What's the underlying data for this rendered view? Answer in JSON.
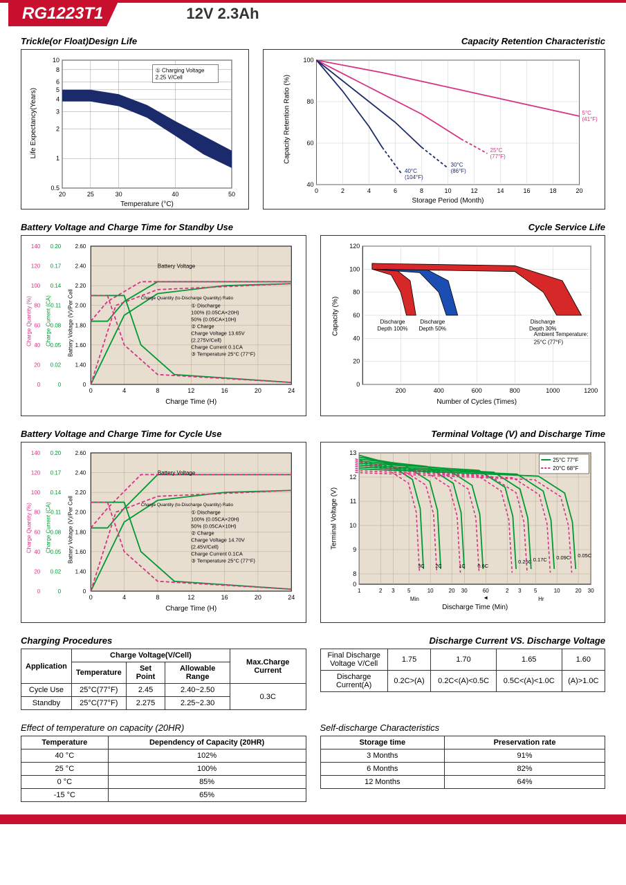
{
  "header": {
    "model": "RG1223T1",
    "spec": "12V  2.3Ah"
  },
  "colors": {
    "accent_red": "#c8102e",
    "navy": "#1b2a6b",
    "magenta": "#d63384",
    "green": "#009933",
    "blue_line": "#1b2a6b",
    "grid": "#d9c9b5",
    "grid_grey": "#cccccc",
    "bg_tan": "#e8ded0",
    "text": "#000000",
    "red_fill": "#d62828",
    "blue_fill": "#1b4db3"
  },
  "chart1": {
    "title": "Trickle(or Float)Design Life",
    "xlabel": "Temperature (°C)",
    "ylabel": "Life Expectancy(Years)",
    "legend": "① Charging Voltage\n2.25 V/Cell",
    "xticks": [
      "20",
      "25",
      "30",
      "40",
      "50"
    ],
    "yticks": [
      "0.5",
      "1",
      "2",
      "3",
      "4",
      "5",
      "6",
      "8",
      "10"
    ],
    "band_upper": [
      [
        20,
        5
      ],
      [
        25,
        5
      ],
      [
        30,
        4.5
      ],
      [
        35,
        3.5
      ],
      [
        40,
        2.4
      ],
      [
        45,
        1.7
      ],
      [
        50,
        1.2
      ]
    ],
    "band_lower": [
      [
        20,
        3.8
      ],
      [
        25,
        3.8
      ],
      [
        30,
        3.4
      ],
      [
        35,
        2.6
      ],
      [
        40,
        1.7
      ],
      [
        45,
        1.1
      ],
      [
        50,
        0.8
      ]
    ],
    "band_color": "#1b2a6b",
    "bg": "#ffffff"
  },
  "chart2": {
    "title": "Capacity Retention Characteristic",
    "xlabel": "Storage Period (Month)",
    "ylabel": "Capacity Retention Ratio (%)",
    "xticks": [
      "0",
      "2",
      "4",
      "6",
      "8",
      "10",
      "12",
      "14",
      "16",
      "18",
      "20"
    ],
    "yticks": [
      "40",
      "60",
      "80",
      "100"
    ],
    "curves": [
      {
        "label": "5°C\n(41°F)",
        "color": "#d63384",
        "pts": [
          [
            0,
            100
          ],
          [
            5,
            94
          ],
          [
            10,
            87
          ],
          [
            15,
            80
          ],
          [
            20,
            73
          ]
        ]
      },
      {
        "label": "25°C\n(77°F)",
        "color": "#d63384",
        "pts": [
          [
            0,
            100
          ],
          [
            4,
            87
          ],
          [
            8,
            74
          ],
          [
            11,
            62
          ],
          [
            13,
            55
          ]
        ],
        "dash_after": 11
      },
      {
        "label": "30°C\n(86°F)",
        "color": "#1b2a6b",
        "pts": [
          [
            0,
            100
          ],
          [
            3,
            85
          ],
          [
            6,
            70
          ],
          [
            8,
            58
          ],
          [
            10,
            48
          ]
        ],
        "dash_after": 8
      },
      {
        "label": "40°C\n(104°F)",
        "color": "#1b2a6b",
        "pts": [
          [
            0,
            100
          ],
          [
            2,
            85
          ],
          [
            4,
            68
          ],
          [
            5,
            58
          ],
          [
            6.5,
            45
          ]
        ],
        "dash_after": 5
      }
    ]
  },
  "chart3": {
    "title": "Battery Voltage and Charge Time for Standby Use",
    "xlabel": "Charge Time (H)",
    "ylabels": [
      "Charge Quantity (%)",
      "Charge Current (CA)",
      "Battery Voltage (V)/Per Cell"
    ],
    "xticks": [
      "0",
      "4",
      "8",
      "12",
      "16",
      "20",
      "24"
    ],
    "y1": [
      "0",
      "20",
      "40",
      "60",
      "80",
      "100",
      "120",
      "140"
    ],
    "y2": [
      "0",
      "0.02",
      "0.05",
      "0.08",
      "0.11",
      "0.14",
      "0.17",
      "0.20"
    ],
    "y3": [
      "0",
      "1.40",
      "1.60",
      "1.80",
      "2.00",
      "2.20",
      "2.40",
      "2.60"
    ],
    "legend_lines": [
      "① Discharge",
      "100% (0.05CA×20H)",
      "50% (0.05CA×10H)",
      "② Charge",
      "Charge Voltage 13.65V",
      "(2.275V/Cell)",
      "Charge Current 0.1CA",
      "③ Temperature 25°C (77°F)"
    ],
    "labels": {
      "bv": "Battery Voltage",
      "cq": "Charge Quantity (to-Discharge Quantity) Ratio",
      "cc": "Charge Current"
    }
  },
  "chart4": {
    "title": "Cycle Service Life",
    "xlabel": "Number of Cycles (Times)",
    "ylabel": "Capacity (%)",
    "xticks": [
      "200",
      "400",
      "600",
      "800",
      "1000",
      "1200"
    ],
    "yticks": [
      "0",
      "20",
      "40",
      "60",
      "80",
      "100",
      "120"
    ],
    "ambient": "Ambient Temperature:\n25°C (77°F)",
    "bands": [
      {
        "label": "Discharge\nDepth 100%",
        "color": "#d62828",
        "upper": [
          [
            50,
            105
          ],
          [
            150,
            103
          ],
          [
            250,
            90
          ],
          [
            280,
            60
          ]
        ],
        "lower": [
          [
            50,
            100
          ],
          [
            150,
            95
          ],
          [
            200,
            80
          ],
          [
            230,
            60
          ]
        ]
      },
      {
        "label": "Discharge\nDepth 50%",
        "color": "#1b4db3",
        "upper": [
          [
            50,
            105
          ],
          [
            300,
            103
          ],
          [
            450,
            90
          ],
          [
            500,
            60
          ]
        ],
        "lower": [
          [
            50,
            100
          ],
          [
            300,
            97
          ],
          [
            400,
            80
          ],
          [
            440,
            60
          ]
        ]
      },
      {
        "label": "Discharge\nDepth 30%",
        "color": "#d62828",
        "upper": [
          [
            50,
            105
          ],
          [
            800,
            103
          ],
          [
            1050,
            90
          ],
          [
            1150,
            60
          ]
        ],
        "lower": [
          [
            50,
            100
          ],
          [
            800,
            98
          ],
          [
            950,
            80
          ],
          [
            1020,
            60
          ]
        ]
      }
    ]
  },
  "chart5": {
    "title": "Battery Voltage and Charge Time for Cycle Use",
    "xlabel": "Charge Time (H)",
    "legend_lines": [
      "① Discharge",
      "100% (0.05CA×20H)",
      "50% (0.05CA×10H)",
      "② Charge",
      "Charge Voltage 14.70V",
      "(2.45V/Cell)",
      "Charge Current 0.1CA",
      "③ Temperature 25°C (77°F)"
    ]
  },
  "chart6": {
    "title": "Terminal Voltage (V) and Discharge Time",
    "xlabel": "Discharge Time (Min)",
    "ylabel": "Terminal Voltage (V)",
    "yticks": [
      "0",
      "8",
      "9",
      "10",
      "11",
      "12",
      "13"
    ],
    "xlabels_min": [
      "1",
      "2",
      "3",
      "5",
      "10",
      "20",
      "30",
      "60"
    ],
    "xlabels_hr": [
      "2",
      "3",
      "5",
      "10",
      "20",
      "30"
    ],
    "legend": [
      {
        "label": "25°C 77°F",
        "color": "#009933",
        "dash": false
      },
      {
        "label": "20°C 68°F",
        "color": "#d63384",
        "dash": true
      }
    ],
    "rate_labels": [
      "3C",
      "2C",
      "1C",
      "0.6C",
      "0.25C",
      "0.17C",
      "0.09C",
      "0.05C"
    ]
  },
  "table1": {
    "title": "Charging Procedures",
    "headers": {
      "app": "Application",
      "cv": "Charge Voltage(V/Cell)",
      "temp": "Temperature",
      "sp": "Set Point",
      "ar": "Allowable Range",
      "mcc": "Max.Charge Current"
    },
    "rows": [
      {
        "app": "Cycle Use",
        "temp": "25°C(77°F)",
        "sp": "2.45",
        "ar": "2.40~2.50"
      },
      {
        "app": "Standby",
        "temp": "25°C(77°F)",
        "sp": "2.275",
        "ar": "2.25~2.30"
      }
    ],
    "mcc": "0.3C"
  },
  "table2": {
    "title": "Discharge Current VS. Discharge Voltage",
    "r1_label": "Final Discharge\nVoltage V/Cell",
    "r1": [
      "1.75",
      "1.70",
      "1.65",
      "1.60"
    ],
    "r2_label": "Discharge\nCurrent(A)",
    "r2": [
      "0.2C>(A)",
      "0.2C<(A)<0.5C",
      "0.5C<(A)<1.0C",
      "(A)>1.0C"
    ]
  },
  "table3": {
    "title": "Effect of temperature on capacity (20HR)",
    "headers": [
      "Temperature",
      "Dependency of Capacity (20HR)"
    ],
    "rows": [
      [
        "40 °C",
        "102%"
      ],
      [
        "25 °C",
        "100%"
      ],
      [
        "0 °C",
        "85%"
      ],
      [
        "-15 °C",
        "65%"
      ]
    ]
  },
  "table4": {
    "title": "Self-discharge Characteristics",
    "headers": [
      "Storage time",
      "Preservation rate"
    ],
    "rows": [
      [
        "3 Months",
        "91%"
      ],
      [
        "6 Months",
        "82%"
      ],
      [
        "12 Months",
        "64%"
      ]
    ]
  }
}
